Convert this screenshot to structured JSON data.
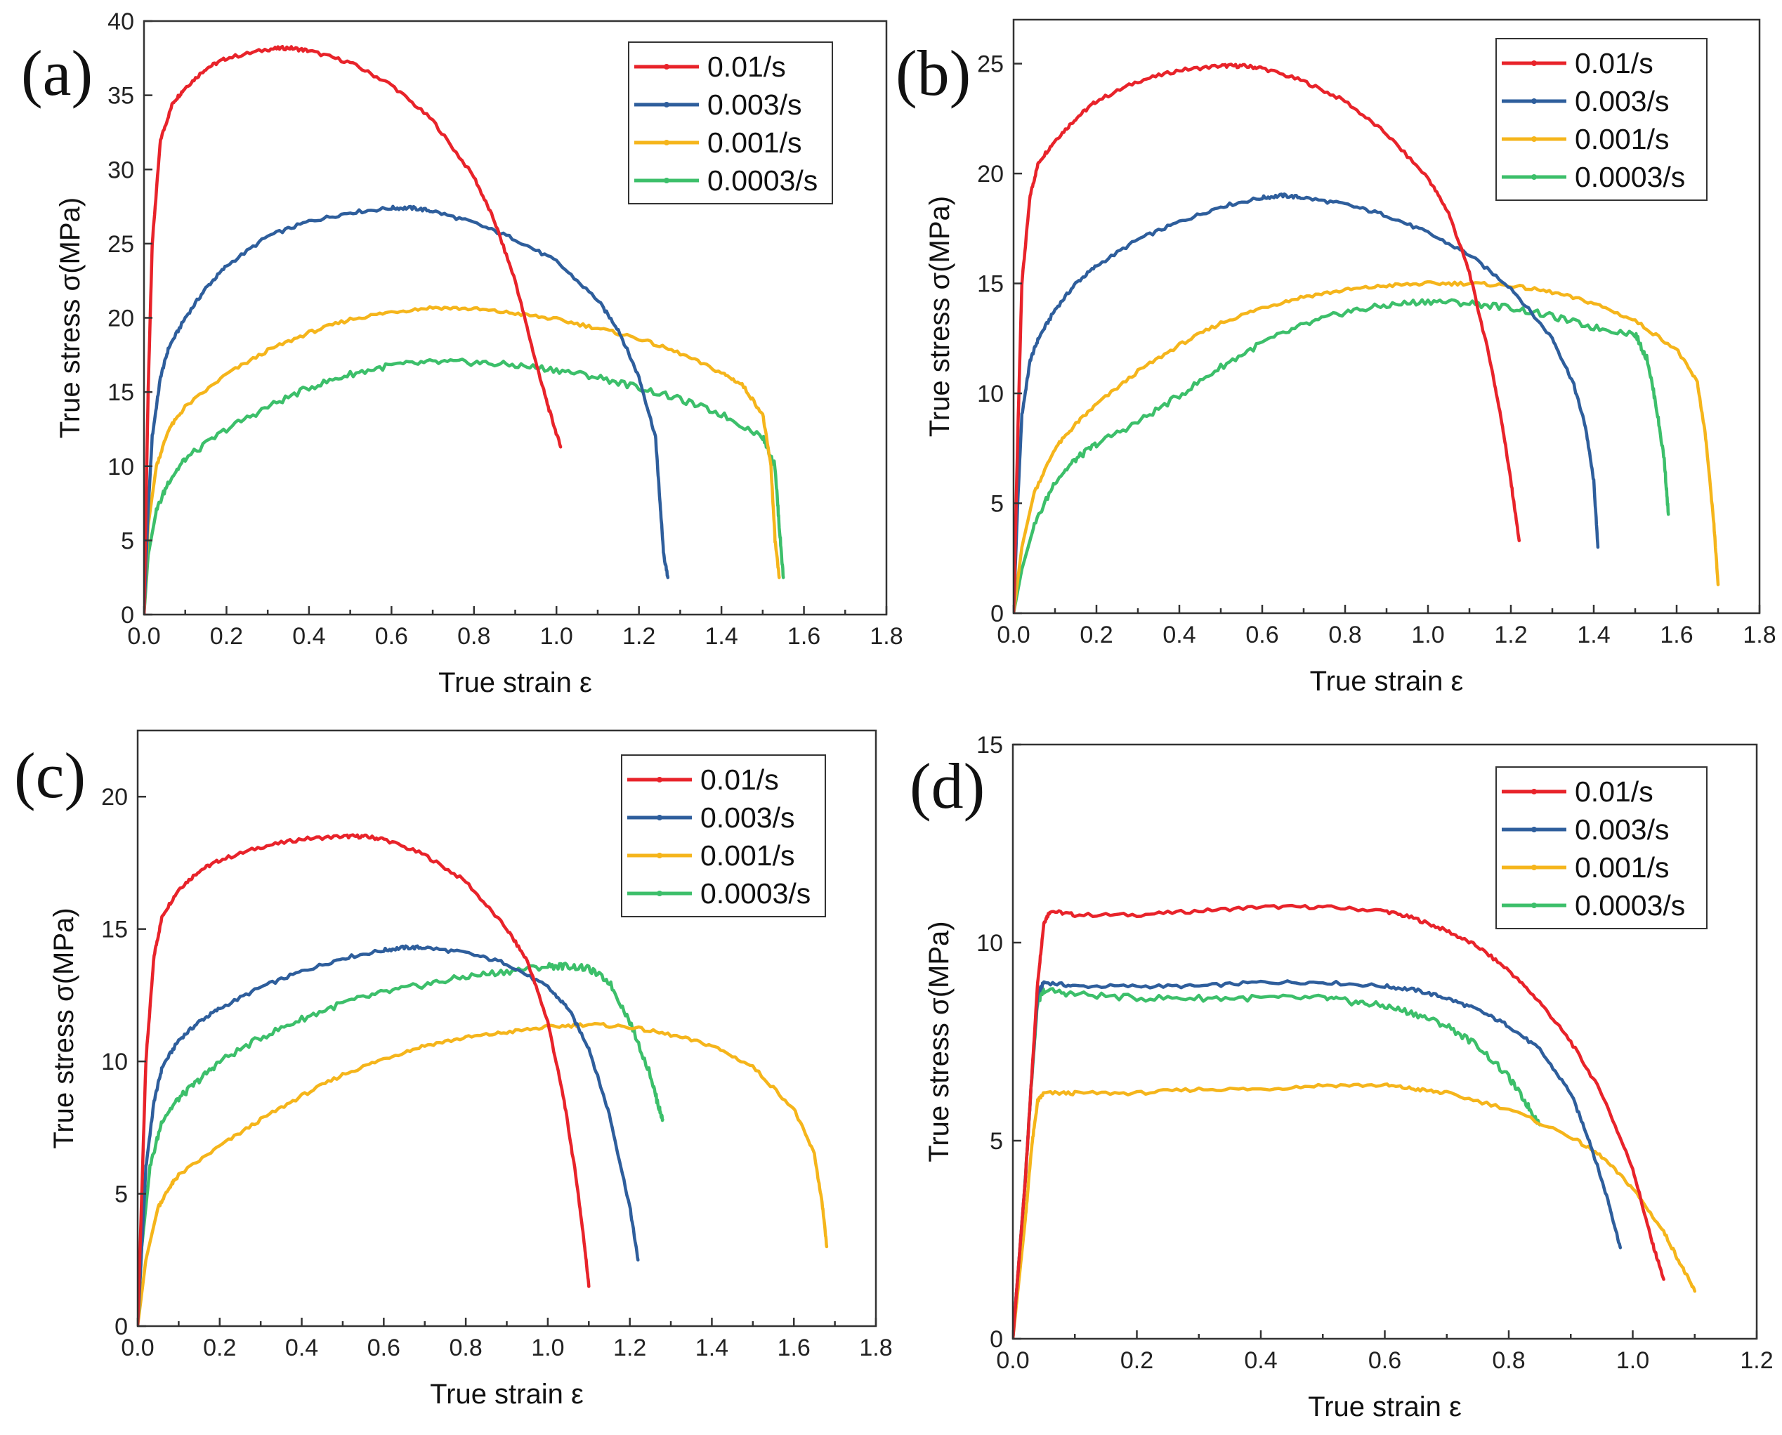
{
  "figure": {
    "legend_entries": [
      "0.01/s",
      "0.003/s",
      "0.001/s",
      "0.0003/s"
    ],
    "colors": {
      "0.01/s": "#e8232a",
      "0.003/s": "#2e5e9c",
      "0.001/s": "#f5b51b",
      "0.0003/s": "#3cbf6a"
    }
  },
  "chart_data": [
    {
      "type": "line",
      "panel_label": "(a)",
      "xlabel": "True strain ε",
      "ylabel": "True stress σ(MPa)",
      "xlim": [
        0,
        1.8
      ],
      "ylim": [
        0,
        40
      ],
      "xticks": [
        "0.0",
        "0.2",
        "0.4",
        "0.6",
        "0.8",
        "1.0",
        "1.2",
        "1.4",
        "1.6",
        "1.8"
      ],
      "yticks": [
        "0",
        "5",
        "10",
        "15",
        "20",
        "25",
        "30",
        "35",
        "40"
      ],
      "legend_position": "top-right",
      "series": [
        {
          "name": "0.01/s",
          "x": [
            0,
            0.01,
            0.02,
            0.04,
            0.07,
            0.1,
            0.15,
            0.2,
            0.3,
            0.35,
            0.4,
            0.5,
            0.6,
            0.7,
            0.8,
            0.85,
            0.9,
            0.95,
            0.98,
            1.01
          ],
          "y": [
            0,
            15,
            25,
            32,
            34.5,
            35.5,
            36.8,
            37.5,
            38.1,
            38.2,
            38,
            37.2,
            35.7,
            33.3,
            29.5,
            26.5,
            22.5,
            17,
            14,
            11.3
          ]
        },
        {
          "name": "0.003/s",
          "x": [
            0,
            0.01,
            0.02,
            0.04,
            0.06,
            0.1,
            0.15,
            0.2,
            0.3,
            0.4,
            0.5,
            0.6,
            0.65,
            0.7,
            0.8,
            0.9,
            1.0,
            1.1,
            1.15,
            1.2,
            1.24,
            1.25,
            1.26,
            1.27
          ],
          "y": [
            0,
            7,
            12,
            16,
            18,
            20,
            22,
            23.5,
            25.5,
            26.5,
            27.1,
            27.4,
            27.4,
            27.2,
            26.4,
            25.3,
            23.8,
            21.2,
            19.2,
            16,
            12,
            8,
            4,
            2.5
          ]
        },
        {
          "name": "0.001/s",
          "x": [
            0,
            0.01,
            0.03,
            0.06,
            0.1,
            0.2,
            0.3,
            0.4,
            0.5,
            0.6,
            0.7,
            0.8,
            0.9,
            1.0,
            1.1,
            1.2,
            1.3,
            1.4,
            1.45,
            1.5,
            1.52,
            1.53,
            1.54
          ],
          "y": [
            0,
            6,
            10,
            12.5,
            14,
            16.2,
            17.8,
            19,
            19.9,
            20.4,
            20.7,
            20.6,
            20.3,
            19.9,
            19.3,
            18.6,
            17.6,
            16.3,
            15.5,
            13.5,
            10,
            5,
            2.5
          ]
        },
        {
          "name": "0.0003/s",
          "x": [
            0,
            0.01,
            0.03,
            0.06,
            0.1,
            0.2,
            0.3,
            0.4,
            0.5,
            0.6,
            0.7,
            0.8,
            0.9,
            1.0,
            1.1,
            1.2,
            1.3,
            1.4,
            1.5,
            1.53,
            1.54,
            1.55
          ],
          "y": [
            0,
            4,
            7,
            9,
            10.5,
            12.5,
            14,
            15.3,
            16.2,
            16.8,
            17,
            17,
            16.8,
            16.5,
            16,
            15.3,
            14.5,
            13.5,
            12,
            10,
            6,
            2.5
          ]
        }
      ]
    },
    {
      "type": "line",
      "panel_label": "(b)",
      "xlabel": "True strain ε",
      "ylabel": "True stress σ(MPa)",
      "xlim": [
        0,
        1.8
      ],
      "ylim": [
        0,
        27
      ],
      "xticks": [
        "0.0",
        "0.2",
        "0.4",
        "0.6",
        "0.8",
        "1.0",
        "1.2",
        "1.4",
        "1.6",
        "1.8"
      ],
      "yticks": [
        "0",
        "5",
        "10",
        "15",
        "20",
        "25"
      ],
      "legend_position": "top-right",
      "series": [
        {
          "name": "0.01/s",
          "x": [
            0,
            0.01,
            0.02,
            0.04,
            0.06,
            0.1,
            0.15,
            0.2,
            0.3,
            0.4,
            0.5,
            0.55,
            0.6,
            0.7,
            0.8,
            0.9,
            1.0,
            1.05,
            1.1,
            1.15,
            1.18,
            1.2,
            1.22
          ],
          "y": [
            0,
            8,
            15,
            19,
            20.5,
            21.5,
            22.5,
            23.3,
            24.2,
            24.7,
            24.9,
            24.9,
            24.8,
            24.2,
            23.3,
            21.8,
            19.8,
            18.2,
            15.5,
            11.5,
            8.5,
            6,
            3.3
          ]
        },
        {
          "name": "0.003/s",
          "x": [
            0,
            0.01,
            0.02,
            0.04,
            0.06,
            0.1,
            0.15,
            0.2,
            0.3,
            0.4,
            0.5,
            0.6,
            0.65,
            0.7,
            0.8,
            0.9,
            1.0,
            1.1,
            1.2,
            1.3,
            1.35,
            1.38,
            1.4,
            1.41
          ],
          "y": [
            0,
            5,
            9,
            11.5,
            12.5,
            13.8,
            15,
            15.8,
            17,
            17.8,
            18.5,
            18.9,
            19,
            18.9,
            18.6,
            18.1,
            17.3,
            16.3,
            14.8,
            12.5,
            10.5,
            8.5,
            6,
            3
          ]
        },
        {
          "name": "0.001/s",
          "x": [
            0,
            0.02,
            0.05,
            0.1,
            0.15,
            0.2,
            0.3,
            0.4,
            0.5,
            0.6,
            0.7,
            0.8,
            0.9,
            1.0,
            1.1,
            1.2,
            1.3,
            1.4,
            1.5,
            1.6,
            1.65,
            1.67,
            1.69,
            1.7
          ],
          "y": [
            0,
            3,
            5.5,
            7.5,
            8.6,
            9.5,
            11,
            12.2,
            13.2,
            13.9,
            14.4,
            14.7,
            14.9,
            15,
            15,
            14.9,
            14.6,
            14.1,
            13.3,
            12,
            10.5,
            8,
            4,
            1.3
          ]
        },
        {
          "name": "0.0003/s",
          "x": [
            0,
            0.02,
            0.05,
            0.1,
            0.15,
            0.2,
            0.3,
            0.4,
            0.5,
            0.6,
            0.7,
            0.8,
            0.9,
            1.0,
            1.1,
            1.2,
            1.3,
            1.4,
            1.5,
            1.53,
            1.55,
            1.57,
            1.58
          ],
          "y": [
            0,
            2,
            4,
            6,
            7,
            7.7,
            8.7,
            9.9,
            11.2,
            12.3,
            13.1,
            13.7,
            14,
            14.2,
            14.1,
            13.9,
            13.5,
            13,
            12.7,
            11.5,
            9.5,
            7,
            4.5
          ]
        }
      ]
    },
    {
      "type": "line",
      "panel_label": "(c)",
      "xlabel": "True strain ε",
      "ylabel": "True stress σ(MPa)",
      "xlim": [
        0,
        1.8
      ],
      "ylim": [
        0,
        22.5
      ],
      "xticks": [
        "0.0",
        "0.2",
        "0.4",
        "0.6",
        "0.8",
        "1.0",
        "1.2",
        "1.4",
        "1.6",
        "1.8"
      ],
      "yticks": [
        "0",
        "5",
        "10",
        "15",
        "20"
      ],
      "legend_position": "top-right",
      "series": [
        {
          "name": "0.01/s",
          "x": [
            0,
            0.01,
            0.02,
            0.04,
            0.06,
            0.1,
            0.15,
            0.2,
            0.3,
            0.4,
            0.5,
            0.55,
            0.6,
            0.7,
            0.8,
            0.9,
            0.95,
            1.0,
            1.04,
            1.07,
            1.09,
            1.1
          ],
          "y": [
            0,
            5,
            10,
            14,
            15.5,
            16.5,
            17.2,
            17.6,
            18.1,
            18.4,
            18.5,
            18.5,
            18.4,
            17.8,
            16.8,
            15,
            13.8,
            11.5,
            8.5,
            5.5,
            3,
            1.5
          ]
        },
        {
          "name": "0.003/s",
          "x": [
            0,
            0.01,
            0.02,
            0.04,
            0.06,
            0.1,
            0.15,
            0.2,
            0.3,
            0.4,
            0.5,
            0.6,
            0.65,
            0.7,
            0.8,
            0.9,
            1.0,
            1.05,
            1.1,
            1.15,
            1.2,
            1.22
          ],
          "y": [
            0,
            3,
            6,
            8.5,
            9.8,
            10.8,
            11.5,
            12,
            12.8,
            13.4,
            13.9,
            14.2,
            14.3,
            14.3,
            14.1,
            13.7,
            12.8,
            12,
            10.5,
            8,
            4.5,
            2.5
          ]
        },
        {
          "name": "0.001/s",
          "x": [
            0,
            0.02,
            0.05,
            0.08,
            0.1,
            0.2,
            0.3,
            0.4,
            0.5,
            0.6,
            0.7,
            0.8,
            0.9,
            1.0,
            1.1,
            1.2,
            1.3,
            1.4,
            1.5,
            1.6,
            1.65,
            1.67,
            1.68
          ],
          "y": [
            0,
            2.5,
            4.5,
            5.3,
            5.7,
            6.8,
            7.8,
            8.7,
            9.5,
            10.1,
            10.6,
            10.9,
            11.1,
            11.3,
            11.4,
            11.3,
            11,
            10.6,
            9.8,
            8.2,
            6.5,
            4.5,
            3
          ]
        },
        {
          "name": "0.0003/s",
          "x": [
            0,
            0.01,
            0.03,
            0.06,
            0.1,
            0.15,
            0.2,
            0.3,
            0.4,
            0.5,
            0.6,
            0.7,
            0.8,
            0.9,
            1.0,
            1.05,
            1.1,
            1.15,
            1.2,
            1.25,
            1.27,
            1.28
          ],
          "y": [
            0,
            3,
            6,
            7.8,
            8.6,
            9.3,
            10,
            10.9,
            11.6,
            12.2,
            12.6,
            12.9,
            13.2,
            13.4,
            13.6,
            13.6,
            13.5,
            13,
            11.5,
            9.5,
            8.3,
            7.8
          ]
        }
      ]
    },
    {
      "type": "line",
      "panel_label": "(d)",
      "xlabel": "True strain ε",
      "ylabel": "True stress σ(MPa)",
      "xlim": [
        0,
        1.2
      ],
      "ylim": [
        0,
        15
      ],
      "xticks": [
        "0.0",
        "0.2",
        "0.4",
        "0.6",
        "0.8",
        "1.0",
        "1.2"
      ],
      "yticks": [
        "0",
        "5",
        "10",
        "15"
      ],
      "legend_position": "top-right",
      "series": [
        {
          "name": "0.01/s",
          "x": [
            0,
            0.01,
            0.02,
            0.03,
            0.04,
            0.05,
            0.06,
            0.1,
            0.2,
            0.3,
            0.4,
            0.5,
            0.6,
            0.65,
            0.7,
            0.75,
            0.8,
            0.85,
            0.9,
            0.95,
            1.0,
            1.03,
            1.05
          ],
          "y": [
            0,
            2,
            4,
            6.5,
            9,
            10.5,
            10.8,
            10.7,
            10.7,
            10.8,
            10.9,
            10.9,
            10.8,
            10.6,
            10.3,
            9.9,
            9.3,
            8.5,
            7.5,
            6.2,
            4.3,
            2.5,
            1.5
          ]
        },
        {
          "name": "0.003/s",
          "x": [
            0,
            0.01,
            0.02,
            0.03,
            0.04,
            0.05,
            0.1,
            0.2,
            0.3,
            0.4,
            0.5,
            0.6,
            0.65,
            0.7,
            0.75,
            0.8,
            0.85,
            0.9,
            0.93,
            0.96,
            0.98
          ],
          "y": [
            0,
            2,
            4,
            6.5,
            8.7,
            9,
            8.9,
            8.9,
            8.9,
            9,
            9,
            8.9,
            8.8,
            8.6,
            8.3,
            7.9,
            7.3,
            6.2,
            5,
            3.5,
            2.3
          ]
        },
        {
          "name": "0.001/s",
          "x": [
            0,
            0.01,
            0.02,
            0.03,
            0.04,
            0.05,
            0.1,
            0.2,
            0.3,
            0.4,
            0.5,
            0.6,
            0.65,
            0.7,
            0.8,
            0.9,
            0.95,
            1.0,
            1.05,
            1.08,
            1.1
          ],
          "y": [
            0,
            1.5,
            3,
            4.8,
            6,
            6.2,
            6.2,
            6.2,
            6.3,
            6.3,
            6.4,
            6.4,
            6.3,
            6.2,
            5.8,
            5.1,
            4.6,
            3.8,
            2.7,
            1.8,
            1.2
          ]
        },
        {
          "name": "0.0003/s",
          "x": [
            0,
            0.01,
            0.02,
            0.03,
            0.04,
            0.05,
            0.1,
            0.2,
            0.3,
            0.4,
            0.5,
            0.55,
            0.6,
            0.65,
            0.7,
            0.75,
            0.8,
            0.83,
            0.85
          ],
          "y": [
            0,
            2,
            4,
            6.5,
            8.5,
            8.8,
            8.7,
            8.6,
            8.6,
            8.6,
            8.6,
            8.5,
            8.4,
            8.2,
            7.9,
            7.4,
            6.6,
            5.9,
            5.4
          ]
        }
      ]
    }
  ]
}
